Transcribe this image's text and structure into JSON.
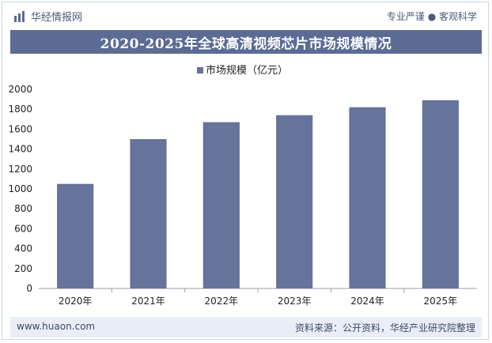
{
  "header": {
    "brand": "华经情报网",
    "tagline": "专业严谨 ● 客观科学"
  },
  "title": "2020-2025年全球高清视频芯片市场规模情况",
  "footer": {
    "site": "www.huaon.com",
    "source": "资料来源：公开资料，华经产业研究院整理"
  },
  "colors": {
    "bar": "#66739a",
    "title_band": "#5b6b94"
  },
  "chart_data": {
    "type": "bar",
    "categories": [
      "2020年",
      "2021年",
      "2022年",
      "2023年",
      "2024年",
      "2025年"
    ],
    "series": [
      {
        "name": "市场规模（亿元）",
        "values": [
          1050,
          1500,
          1670,
          1740,
          1820,
          1890
        ]
      }
    ],
    "ylim": [
      0,
      2000
    ],
    "yticks": [
      0,
      200,
      400,
      600,
      800,
      1000,
      1200,
      1400,
      1600,
      1800,
      2000
    ],
    "legend_position": "top-center",
    "grid": false
  }
}
